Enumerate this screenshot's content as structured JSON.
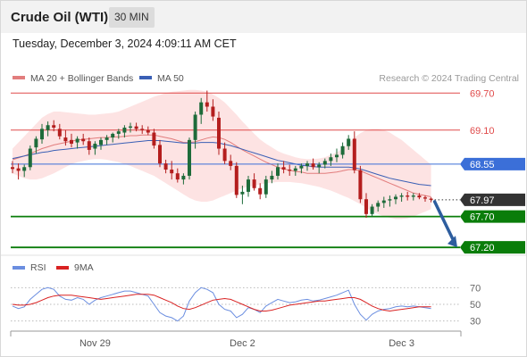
{
  "header": {
    "title": "Crude Oil (WTI)",
    "interval": "30 MIN"
  },
  "timestamp": "Tuesday, December 3, 2024 4:09:11 AM CET",
  "legend": {
    "ma20_label": "MA 20 + Bollinger Bands",
    "ma50_label": "MA 50",
    "copyright": "Research © 2024 Trading Central"
  },
  "rsi_legend": {
    "rsi_label": "RSI",
    "ma_label": "9MA"
  },
  "colors": {
    "up": "#1e6b3a",
    "down": "#b41e1e",
    "ma20": "#e27d7d",
    "ma50": "#3a5fb5",
    "bollinger_fill": "#fcdcdc",
    "resistance": "#e04a4a",
    "pivot": "#3b6fd8",
    "support": "#0a7d0a",
    "last": "#333333",
    "arrow": "#2d5d9e",
    "rsi": "#6b8ee0",
    "rsi_ma": "#d92222"
  },
  "chart_data": [
    {
      "type": "candlestick",
      "ylim": [
        67.0,
        69.95
      ],
      "x_tick_labels": [
        "Nov 29",
        "Dec 2",
        "Dec 3"
      ],
      "candles_ohlc": [
        [
          68.5,
          68.6,
          68.4,
          68.47
        ],
        [
          68.48,
          68.56,
          68.3,
          68.44
        ],
        [
          68.44,
          68.54,
          68.34,
          68.5
        ],
        [
          68.5,
          68.85,
          68.45,
          68.8
        ],
        [
          68.82,
          69.0,
          68.72,
          68.96
        ],
        [
          68.95,
          69.2,
          68.88,
          69.12
        ],
        [
          69.1,
          69.24,
          69.0,
          69.18
        ],
        [
          69.18,
          69.26,
          69.08,
          69.14
        ],
        [
          69.12,
          69.2,
          68.95,
          69.0
        ],
        [
          68.98,
          69.1,
          68.85,
          68.92
        ],
        [
          68.94,
          69.04,
          68.82,
          68.88
        ],
        [
          68.9,
          69.0,
          68.8,
          68.96
        ],
        [
          68.96,
          69.04,
          68.86,
          68.92
        ],
        [
          68.92,
          68.98,
          68.7,
          68.78
        ],
        [
          68.8,
          68.92,
          68.7,
          68.88
        ],
        [
          68.86,
          68.98,
          68.78,
          68.94
        ],
        [
          68.94,
          69.02,
          68.86,
          68.98
        ],
        [
          68.98,
          69.06,
          68.9,
          69.04
        ],
        [
          69.04,
          69.12,
          68.96,
          69.08
        ],
        [
          69.06,
          69.18,
          68.98,
          69.14
        ],
        [
          69.14,
          69.22,
          69.06,
          69.16
        ],
        [
          69.16,
          69.22,
          69.08,
          69.12
        ],
        [
          69.12,
          69.18,
          69.04,
          69.1
        ],
        [
          69.1,
          69.16,
          69.02,
          69.06
        ],
        [
          69.06,
          69.12,
          68.8,
          68.85
        ],
        [
          68.86,
          68.94,
          68.5,
          68.56
        ],
        [
          68.56,
          68.62,
          68.4,
          68.46
        ],
        [
          68.46,
          68.6,
          68.3,
          68.4
        ],
        [
          68.4,
          68.48,
          68.25,
          68.3
        ],
        [
          68.3,
          68.4,
          68.22,
          68.36
        ],
        [
          68.36,
          68.98,
          68.3,
          68.94
        ],
        [
          68.94,
          69.4,
          68.8,
          69.35
        ],
        [
          69.35,
          69.62,
          69.2,
          69.55
        ],
        [
          69.55,
          69.74,
          69.4,
          69.48
        ],
        [
          69.48,
          69.6,
          69.25,
          69.32
        ],
        [
          69.3,
          69.4,
          68.7,
          68.8
        ],
        [
          68.8,
          68.9,
          68.55,
          68.6
        ],
        [
          68.6,
          68.7,
          68.45,
          68.52
        ],
        [
          68.52,
          68.58,
          68.0,
          68.05
        ],
        [
          68.06,
          68.2,
          67.9,
          68.1
        ],
        [
          68.1,
          68.36,
          68.02,
          68.3
        ],
        [
          68.3,
          68.4,
          68.12,
          68.16
        ],
        [
          68.16,
          68.24,
          67.98,
          68.06
        ],
        [
          68.06,
          68.36,
          68.0,
          68.3
        ],
        [
          68.3,
          68.44,
          68.24,
          68.36
        ],
        [
          68.36,
          68.56,
          68.3,
          68.5
        ],
        [
          68.5,
          68.6,
          68.4,
          68.46
        ],
        [
          68.46,
          68.54,
          68.36,
          68.44
        ],
        [
          68.44,
          68.52,
          68.36,
          68.48
        ],
        [
          68.48,
          68.56,
          68.4,
          68.52
        ],
        [
          68.52,
          68.6,
          68.44,
          68.56
        ],
        [
          68.56,
          68.64,
          68.46,
          68.5
        ],
        [
          68.5,
          68.58,
          68.4,
          68.54
        ],
        [
          68.54,
          68.64,
          68.48,
          68.6
        ],
        [
          68.6,
          68.72,
          68.52,
          68.66
        ],
        [
          68.66,
          68.8,
          68.58,
          68.7
        ],
        [
          68.7,
          68.9,
          68.64,
          68.84
        ],
        [
          68.84,
          69.02,
          68.78,
          68.96
        ],
        [
          68.96,
          69.08,
          68.4,
          68.45
        ],
        [
          68.45,
          68.52,
          67.92,
          67.98
        ],
        [
          67.98,
          68.08,
          67.68,
          67.74
        ],
        [
          67.74,
          67.9,
          67.7,
          67.86
        ],
        [
          67.86,
          67.96,
          67.78,
          67.92
        ],
        [
          67.92,
          68.02,
          67.84,
          67.96
        ],
        [
          67.96,
          68.04,
          67.86,
          67.98
        ],
        [
          67.98,
          68.06,
          67.9,
          68.02
        ],
        [
          68.02,
          68.08,
          67.94,
          68.04
        ],
        [
          68.04,
          68.1,
          67.96,
          68.02
        ],
        [
          68.02,
          68.08,
          67.96,
          68.04
        ],
        [
          68.04,
          68.08,
          67.98,
          68.01
        ],
        [
          68.01,
          68.04,
          67.94,
          67.99
        ],
        [
          67.99,
          68.01,
          67.93,
          67.97
        ]
      ],
      "ma20": [
        68.62,
        68.65,
        68.68,
        68.72,
        68.76,
        68.8,
        68.83,
        68.86,
        68.88,
        68.9,
        68.92,
        68.94,
        68.95,
        68.96,
        68.97,
        68.98,
        68.98,
        68.99,
        68.99,
        69.0,
        69.01,
        69.01,
        69.02,
        69.02,
        69.02,
        69.0,
        68.98,
        68.96,
        68.93,
        68.9,
        68.9,
        68.91,
        68.94,
        68.97,
        68.99,
        68.98,
        68.95,
        68.9,
        68.84,
        68.78,
        68.73,
        68.68,
        68.63,
        68.58,
        68.54,
        68.5,
        68.47,
        68.45,
        68.43,
        68.42,
        68.4,
        68.4,
        68.4,
        68.4,
        68.41,
        68.42,
        68.44,
        68.46,
        68.46,
        68.44,
        68.4,
        68.36,
        68.32,
        68.28,
        68.24,
        68.2,
        68.16,
        68.12,
        68.08,
        68.06,
        68.04,
        68.02
      ],
      "bollinger_upper": [
        68.8,
        68.9,
        69.0,
        69.1,
        69.2,
        69.3,
        69.36,
        69.4,
        69.4,
        69.39,
        69.38,
        69.37,
        69.36,
        69.35,
        69.35,
        69.36,
        69.37,
        69.38,
        69.4,
        69.44,
        69.48,
        69.52,
        69.56,
        69.6,
        69.64,
        69.67,
        69.7,
        69.72,
        69.73,
        69.74,
        69.75,
        69.75,
        69.74,
        69.72,
        69.68,
        69.62,
        69.55,
        69.45,
        69.35,
        69.24,
        69.14,
        69.04,
        68.95,
        68.88,
        68.82,
        68.76,
        68.72,
        68.69,
        68.66,
        68.64,
        68.63,
        68.63,
        68.64,
        68.66,
        68.7,
        68.74,
        68.8,
        68.88,
        68.98,
        69.05,
        69.1,
        69.12,
        69.12,
        69.1,
        69.06,
        69.0,
        68.94,
        68.86,
        68.78,
        68.7,
        68.62,
        68.54
      ],
      "bollinger_lower": [
        68.4,
        68.36,
        68.32,
        68.3,
        68.3,
        68.32,
        68.36,
        68.4,
        68.45,
        68.5,
        68.55,
        68.58,
        68.6,
        68.62,
        68.63,
        68.63,
        68.62,
        68.6,
        68.58,
        68.55,
        68.52,
        68.48,
        68.44,
        68.4,
        68.36,
        68.3,
        68.24,
        68.18,
        68.12,
        68.06,
        68.0,
        67.96,
        67.94,
        67.94,
        67.96,
        68.0,
        68.04,
        68.08,
        68.12,
        68.16,
        68.18,
        68.2,
        68.22,
        68.24,
        68.25,
        68.26,
        68.26,
        68.26,
        68.25,
        68.24,
        68.22,
        68.2,
        68.18,
        68.15,
        68.12,
        68.08,
        68.04,
        68.0,
        67.95,
        67.9,
        67.84,
        67.78,
        67.74,
        67.7,
        67.68,
        67.66,
        67.66,
        67.67,
        67.7,
        67.74,
        67.78,
        67.82
      ],
      "ma50": [
        68.64,
        68.66,
        68.68,
        68.7,
        68.72,
        68.74,
        68.75,
        68.77,
        68.78,
        68.79,
        68.8,
        68.81,
        68.82,
        68.83,
        68.84,
        68.85,
        68.86,
        68.87,
        68.88,
        68.89,
        68.9,
        68.91,
        68.92,
        68.93,
        68.93,
        68.93,
        68.92,
        68.91,
        68.9,
        68.89,
        68.89,
        68.89,
        68.9,
        68.9,
        68.9,
        68.89,
        68.87,
        68.85,
        68.82,
        68.79,
        68.76,
        68.73,
        68.7,
        68.67,
        68.64,
        68.61,
        68.59,
        68.57,
        68.55,
        68.53,
        68.52,
        68.51,
        68.5,
        68.5,
        68.5,
        68.5,
        68.5,
        68.5,
        68.49,
        68.47,
        68.44,
        68.41,
        68.38,
        68.35,
        68.32,
        68.3,
        68.28,
        68.26,
        68.24,
        68.22,
        68.21,
        68.2
      ],
      "levels": [
        {
          "price": 69.7,
          "label": "69.70",
          "kind": "resistance"
        },
        {
          "price": 69.1,
          "label": "69.10",
          "kind": "resistance"
        },
        {
          "price": 68.55,
          "label": "68.55",
          "kind": "pivot"
        },
        {
          "price": 67.97,
          "label": "67.97",
          "kind": "last"
        },
        {
          "price": 67.7,
          "label": "67.70",
          "kind": "support"
        },
        {
          "price": 67.2,
          "label": "67.20",
          "kind": "support"
        }
      ],
      "forecast_arrow": {
        "from_price": 67.97,
        "to_price": 67.2
      }
    },
    {
      "type": "line",
      "ylim": [
        20,
        80
      ],
      "y_tick_labels": [
        "70",
        "50",
        "30"
      ],
      "series": [
        {
          "name": "RSI",
          "values": [
            48,
            45,
            47,
            56,
            62,
            68,
            70,
            68,
            60,
            56,
            55,
            58,
            56,
            50,
            55,
            58,
            60,
            62,
            64,
            66,
            66,
            64,
            62,
            60,
            50,
            40,
            36,
            34,
            30,
            36,
            54,
            64,
            70,
            68,
            64,
            50,
            44,
            42,
            34,
            38,
            46,
            44,
            40,
            48,
            52,
            56,
            54,
            52,
            53,
            55,
            56,
            54,
            55,
            57,
            59,
            61,
            64,
            67,
            50,
            38,
            31,
            38,
            42,
            44,
            45,
            47,
            48,
            47,
            48,
            47,
            46,
            45
          ]
        },
        {
          "name": "9MA",
          "values": [
            50,
            49,
            49,
            50,
            52,
            55,
            58,
            60,
            61,
            61,
            61,
            60,
            59,
            58,
            57,
            56,
            57,
            58,
            59,
            60,
            61,
            62,
            62,
            62,
            61,
            58,
            55,
            52,
            48,
            45,
            44,
            46,
            49,
            52,
            55,
            56,
            57,
            56,
            53,
            50,
            47,
            44,
            42,
            42,
            43,
            45,
            47,
            49,
            50,
            51,
            52,
            53,
            54,
            54,
            55,
            56,
            57,
            58,
            58,
            56,
            52,
            48,
            45,
            43,
            42,
            43,
            44,
            45,
            46,
            47,
            47,
            47
          ]
        }
      ]
    }
  ]
}
